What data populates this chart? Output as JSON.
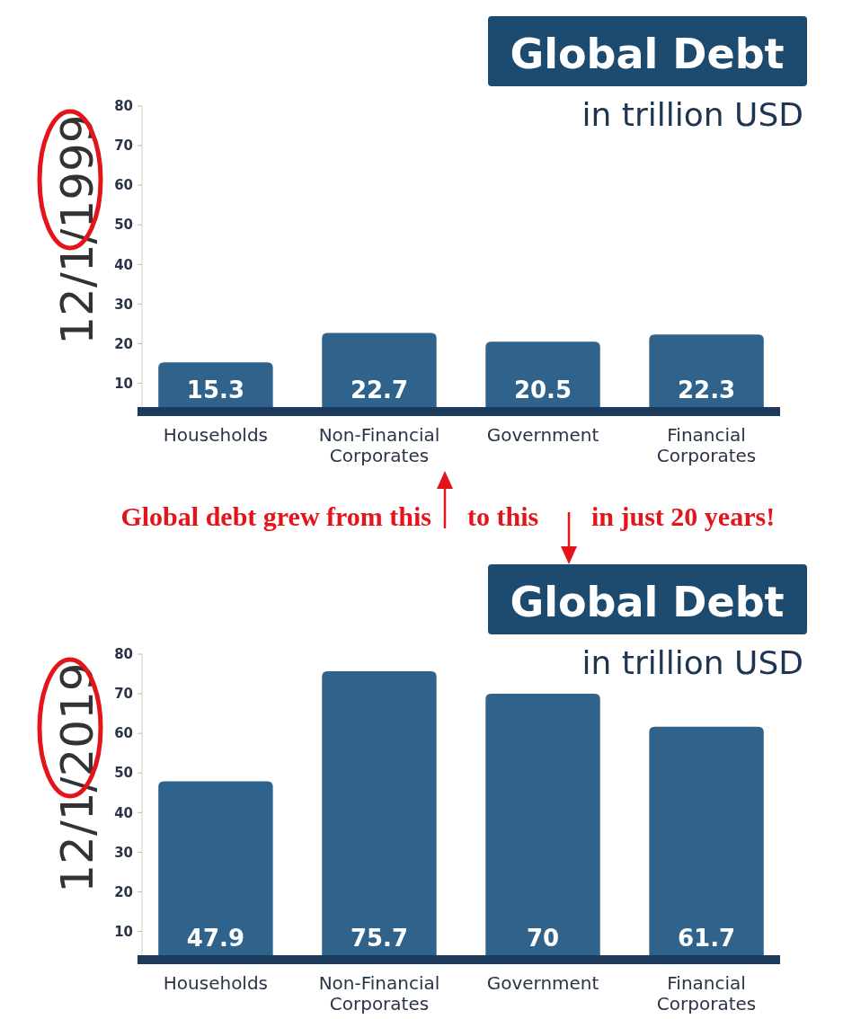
{
  "chart_data": [
    {
      "type": "bar",
      "title": "Global Debt",
      "subtitle": "in trillion USD",
      "ylabel": "12/1/1999",
      "categories": [
        "Households",
        "Non-Financial Corporates",
        "Government",
        "Financial Corporates"
      ],
      "values": [
        15.3,
        22.7,
        20.5,
        22.3
      ],
      "color": "#2f638c",
      "ylim": [
        4,
        80
      ],
      "yticks": [
        10,
        20,
        30,
        40,
        50,
        60,
        70,
        80
      ],
      "data_labels": true,
      "grid": false,
      "annotations": [
        "Global debt grew from this",
        "to this",
        "in just 20 years!"
      ]
    },
    {
      "type": "bar",
      "title": "Global Debt",
      "subtitle": "in trillion USD",
      "ylabel": "12/1/2019",
      "categories": [
        "Households",
        "Non-Financial Corporates",
        "Government",
        "Financial Corporates"
      ],
      "values": [
        47.9,
        75.7,
        70,
        61.7
      ],
      "color": "#2f638c",
      "ylim": [
        4,
        80
      ],
      "yticks": [
        10,
        20,
        30,
        40,
        50,
        60,
        70,
        80
      ],
      "data_labels": true,
      "grid": false
    }
  ]
}
